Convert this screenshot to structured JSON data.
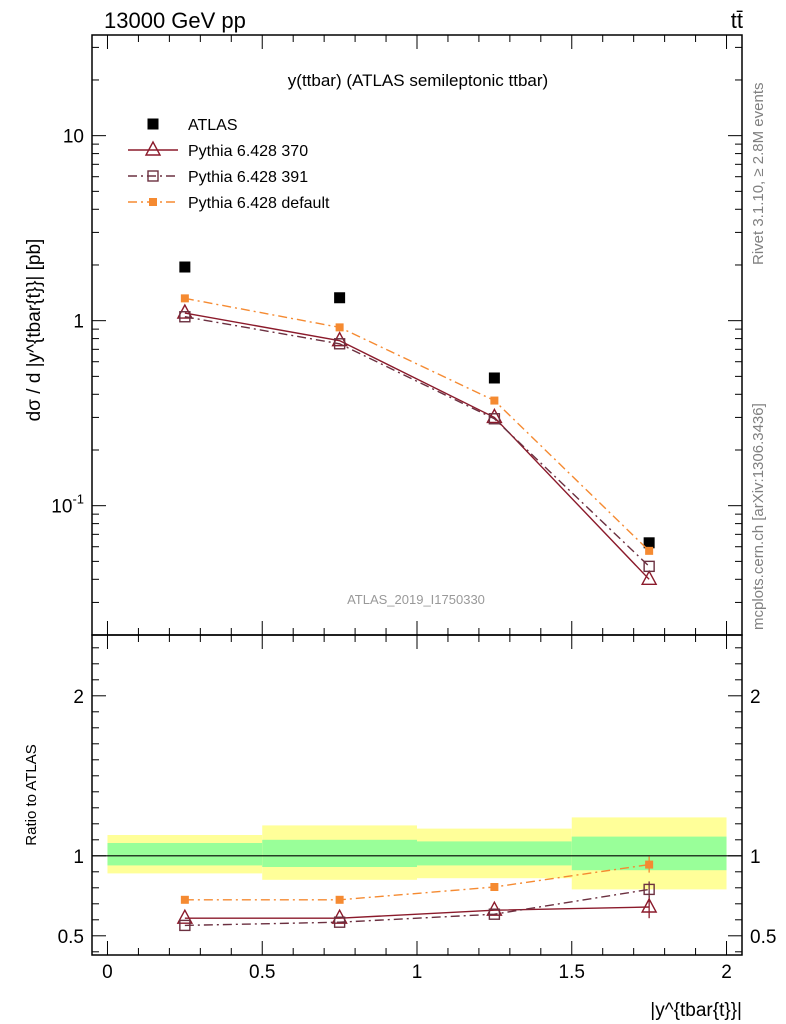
{
  "header": {
    "energy_label": "13000 GeV pp",
    "process_label": "tt̄"
  },
  "side_labels": {
    "rivet": "Rivet 3.1.10, ≥ 2.8M events",
    "mcplots": "mcplots.cern.ch [arXiv:1306.3436]"
  },
  "chart_data": [
    {
      "type": "scatter",
      "panel": "main",
      "title": "y(ttbar) (ATLAS semileptonic ttbar)",
      "ylabel": "dσ / d |y^{tbar{t}}| [pb]",
      "xlabel": "",
      "yscale": "log",
      "ylim": [
        0.02,
        35
      ],
      "xlim": [
        -0.05,
        2.05
      ],
      "y_tick_labels": [
        "10^{-1}",
        "1",
        "10"
      ],
      "watermark": "ATLAS_2019_I1750330",
      "legend_position": "top-left",
      "x": [
        0.25,
        0.75,
        1.25,
        1.75
      ],
      "series": [
        {
          "name": "ATLAS",
          "style": "data",
          "color": "#000000",
          "values": [
            1.95,
            1.33,
            0.49,
            0.063
          ]
        },
        {
          "name": "Pythia 6.428 370",
          "style": "solid",
          "marker": "triangle",
          "color": "#8b1a2b",
          "values": [
            1.1,
            0.78,
            0.3,
            0.04
          ]
        },
        {
          "name": "Pythia 6.428 391",
          "style": "dashdot",
          "marker": "open-square",
          "color": "#6b3040",
          "values": [
            1.05,
            0.75,
            0.295,
            0.047
          ]
        },
        {
          "name": "Pythia 6.428 default",
          "style": "dashdot",
          "marker": "filled-square",
          "color": "#f58a31",
          "values": [
            1.32,
            0.92,
            0.37,
            0.057
          ]
        }
      ]
    },
    {
      "type": "line",
      "panel": "ratio",
      "ylabel": "Ratio to ATLAS",
      "xlabel": "|y^{tbar{t}}|",
      "ylim": [
        0.38,
        2.38
      ],
      "xlim": [
        -0.05,
        2.05
      ],
      "x_tick_labels": [
        "0",
        "0.5",
        "1",
        "1.5",
        "2"
      ],
      "y_tick_labels": [
        "0.5",
        "1",
        "2"
      ],
      "bins": [
        [
          0,
          0.5
        ],
        [
          0.5,
          1.0
        ],
        [
          1.0,
          1.5
        ],
        [
          1.5,
          2.0
        ]
      ],
      "band_inner": [
        [
          0.94,
          1.08
        ],
        [
          0.93,
          1.1
        ],
        [
          0.94,
          1.09
        ],
        [
          0.91,
          1.12
        ]
      ],
      "band_outer": [
        [
          0.89,
          1.13
        ],
        [
          0.85,
          1.19
        ],
        [
          0.86,
          1.17
        ],
        [
          0.79,
          1.24
        ]
      ],
      "band_colors": {
        "inner": "#99ff99",
        "outer": "#ffff99"
      },
      "x": [
        0.25,
        0.75,
        1.25,
        1.75
      ],
      "series": [
        {
          "name": "Pythia 6.428 370",
          "style": "solid",
          "marker": "triangle",
          "color": "#8b1a2b",
          "values": [
            0.61,
            0.61,
            0.66,
            0.68
          ],
          "errors": [
            0.01,
            0.01,
            0.015,
            0.07
          ]
        },
        {
          "name": "Pythia 6.428 391",
          "style": "dashdot",
          "marker": "open-square",
          "color": "#6b3040",
          "values": [
            0.565,
            0.585,
            0.635,
            0.79
          ],
          "errors": [
            0.01,
            0.01,
            0.015,
            0.05
          ]
        },
        {
          "name": "Pythia 6.428 default",
          "style": "dashdot",
          "marker": "filled-square",
          "color": "#f58a31",
          "values": [
            0.725,
            0.725,
            0.805,
            0.945
          ],
          "errors": [
            0.01,
            0.01,
            0.02,
            0.05
          ]
        }
      ]
    }
  ]
}
